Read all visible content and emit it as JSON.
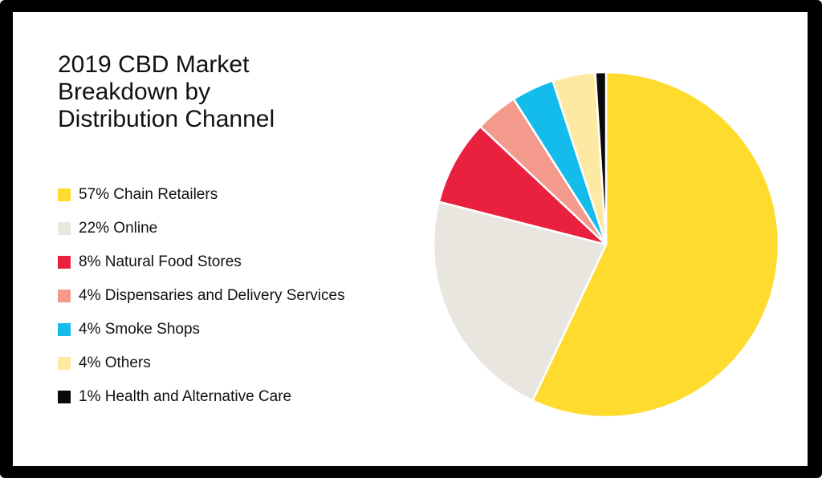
{
  "chart_data": {
    "type": "pie",
    "title": "2019 CBD Market\nBreakdown by\nDistribution Channel",
    "legend_position": "left",
    "slices": [
      {
        "label": "57% Chain Retailers",
        "value": 57,
        "color": "#FFDB2E"
      },
      {
        "label": "22% Online",
        "value": 22,
        "color": "#E8E6DE"
      },
      {
        "label": "8% Natural Food Stores",
        "value": 8,
        "color": "#E9213F"
      },
      {
        "label": "4% Dispensaries and Delivery Services",
        "value": 4,
        "color": "#F49A8C"
      },
      {
        "label": "4% Smoke Shops",
        "value": 4,
        "color": "#14BCEC"
      },
      {
        "label": "4% Others",
        "value": 4,
        "color": "#FDE9A2"
      },
      {
        "label": "1% Health and Alternative Care",
        "value": 1,
        "color": "#0A0A0A"
      }
    ]
  }
}
